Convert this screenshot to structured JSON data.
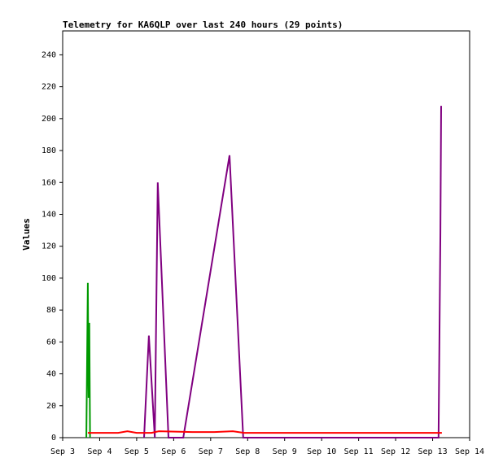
{
  "chart_data": {
    "type": "line",
    "title": "Telemetry for KA6QLP over last 240 hours (29 points)",
    "y_label": "Values",
    "xlim": [
      3,
      14
    ],
    "xticks": [
      {
        "value": 3,
        "label": "Sep 3"
      },
      {
        "value": 4,
        "label": "Sep 4"
      },
      {
        "value": 5,
        "label": "Sep 5"
      },
      {
        "value": 6,
        "label": "Sep 6"
      },
      {
        "value": 7,
        "label": "Sep 7"
      },
      {
        "value": 8,
        "label": "Sep 8"
      },
      {
        "value": 9,
        "label": "Sep 9"
      },
      {
        "value": 10,
        "label": "Sep 10"
      },
      {
        "value": 11,
        "label": "Sep 11"
      },
      {
        "value": 12,
        "label": "Sep 12"
      },
      {
        "value": 13,
        "label": "Sep 13"
      },
      {
        "value": 14,
        "label": "Sep 14"
      }
    ],
    "ylim": [
      0,
      255
    ],
    "yticks": [
      0,
      20,
      40,
      60,
      80,
      100,
      120,
      140,
      160,
      180,
      200,
      220,
      240
    ],
    "grid": false,
    "series": [
      {
        "color": "#009900",
        "x": [
          3.64,
          3.66,
          3.68,
          3.7,
          3.72,
          3.74
        ],
        "values": [
          0,
          48,
          97,
          25,
          72,
          0
        ]
      },
      {
        "color": "#800080",
        "x": [
          5.2,
          5.33,
          5.49,
          5.57,
          5.86,
          6.26,
          7.51,
          7.88,
          13.16,
          13.19,
          13.21,
          13.23
        ],
        "values": [
          0,
          64,
          0,
          160,
          0,
          0,
          177,
          0,
          0,
          78,
          129,
          208
        ]
      },
      {
        "color": "#ff0000",
        "x": [
          3.68,
          4.5,
          4.75,
          5.0,
          5.4,
          5.6,
          6.5,
          7.1,
          7.6,
          7.9,
          13.25
        ],
        "values": [
          3,
          3,
          4,
          3,
          3,
          4,
          3.5,
          3.5,
          4,
          3,
          3
        ]
      }
    ]
  }
}
